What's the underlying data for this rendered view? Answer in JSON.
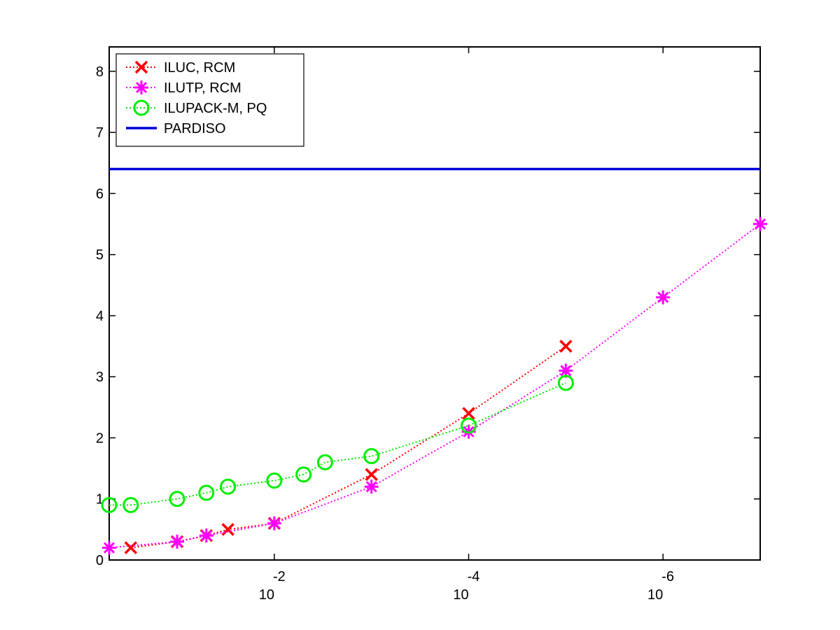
{
  "chart_data": {
    "type": "line",
    "title": "",
    "xlabel": "",
    "ylabel": "",
    "x_scale": "log-reversed",
    "xlim": [
      0.5,
      1e-07
    ],
    "ylim": [
      0,
      8.4
    ],
    "grid": false,
    "legend_position": "top-left",
    "x_ticks": [
      {
        "value": 0.01,
        "base": "10",
        "exp": "-2"
      },
      {
        "value": 0.0001,
        "base": "10",
        "exp": "-4"
      },
      {
        "value": 1e-06,
        "base": "10",
        "exp": "-6"
      }
    ],
    "y_ticks": [
      "0",
      "1",
      "2",
      "3",
      "4",
      "5",
      "6",
      "7",
      "8"
    ],
    "series": [
      {
        "name": "ILUC, RCM",
        "color": "#ff0000",
        "marker": "x",
        "line": "dotted",
        "points": [
          {
            "x": 0.3,
            "y": 0.2
          },
          {
            "x": 0.1,
            "y": 0.3
          },
          {
            "x": 0.05,
            "y": 0.4
          },
          {
            "x": 0.03,
            "y": 0.5
          },
          {
            "x": 0.01,
            "y": 0.6
          },
          {
            "x": 0.001,
            "y": 1.4
          },
          {
            "x": 0.0001,
            "y": 2.4
          },
          {
            "x": 1e-05,
            "y": 3.5
          }
        ]
      },
      {
        "name": "ILUTP, RCM",
        "color": "#ff00ff",
        "marker": "asterisk",
        "line": "dotted",
        "points": [
          {
            "x": 0.5,
            "y": 0.2
          },
          {
            "x": 0.1,
            "y": 0.3
          },
          {
            "x": 0.05,
            "y": 0.4
          },
          {
            "x": 0.01,
            "y": 0.6
          },
          {
            "x": 0.001,
            "y": 1.2
          },
          {
            "x": 0.0001,
            "y": 2.1
          },
          {
            "x": 1e-05,
            "y": 3.1
          },
          {
            "x": 1e-06,
            "y": 4.3
          },
          {
            "x": 1e-07,
            "y": 5.5
          }
        ]
      },
      {
        "name": "ILUPACK-M, PQ",
        "color": "#00ee00",
        "marker": "circle",
        "line": "dotted",
        "points": [
          {
            "x": 0.5,
            "y": 0.9
          },
          {
            "x": 0.3,
            "y": 0.9
          },
          {
            "x": 0.1,
            "y": 1.0
          },
          {
            "x": 0.05,
            "y": 1.1
          },
          {
            "x": 0.03,
            "y": 1.2
          },
          {
            "x": 0.01,
            "y": 1.3
          },
          {
            "x": 0.005,
            "y": 1.4
          },
          {
            "x": 0.003,
            "y": 1.6
          },
          {
            "x": 0.001,
            "y": 1.7
          },
          {
            "x": 0.0001,
            "y": 2.2
          },
          {
            "x": 1e-05,
            "y": 2.9
          }
        ]
      },
      {
        "name": "PARDISO",
        "color": "#0000dd",
        "marker": "none",
        "line": "solid",
        "points": [
          {
            "x": 0.5,
            "y": 6.4
          },
          {
            "x": 1e-07,
            "y": 6.4
          }
        ]
      }
    ]
  }
}
